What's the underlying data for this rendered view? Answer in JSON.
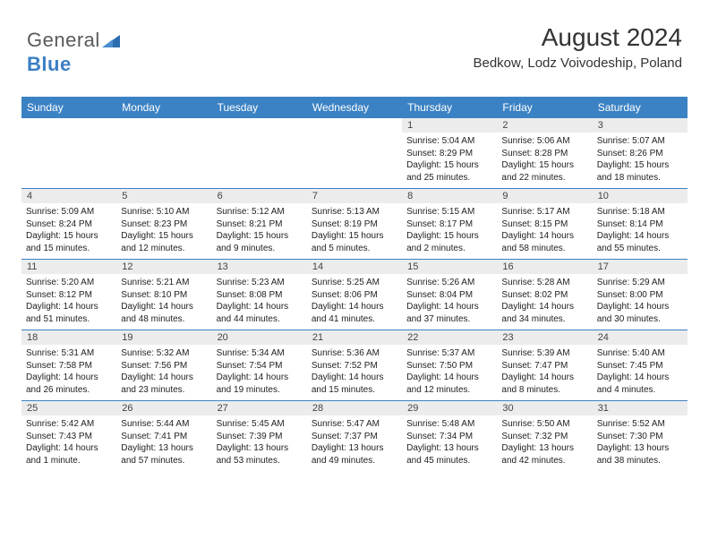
{
  "logo": {
    "text1": "General",
    "text2": "Blue"
  },
  "title": "August 2024",
  "subtitle": "Bedkow, Lodz Voivodeship, Poland",
  "daynames": [
    "Sunday",
    "Monday",
    "Tuesday",
    "Wednesday",
    "Thursday",
    "Friday",
    "Saturday"
  ],
  "colors": {
    "header_bar": "#3b82c4",
    "week_border": "#3b82c4",
    "daynum_bg": "#ececec",
    "logo_gray": "#5a5a5a",
    "logo_blue": "#3b7fc4"
  },
  "typography": {
    "title_fontsize": 28,
    "subtitle_fontsize": 15,
    "dayname_fontsize": 12,
    "daynum_fontsize": 11,
    "info_fontsize": 10
  },
  "weeks": [
    [
      {
        "n": "",
        "sr": "",
        "ss": "",
        "dl": ""
      },
      {
        "n": "",
        "sr": "",
        "ss": "",
        "dl": ""
      },
      {
        "n": "",
        "sr": "",
        "ss": "",
        "dl": ""
      },
      {
        "n": "",
        "sr": "",
        "ss": "",
        "dl": ""
      },
      {
        "n": "1",
        "sr": "Sunrise: 5:04 AM",
        "ss": "Sunset: 8:29 PM",
        "dl": "Daylight: 15 hours and 25 minutes."
      },
      {
        "n": "2",
        "sr": "Sunrise: 5:06 AM",
        "ss": "Sunset: 8:28 PM",
        "dl": "Daylight: 15 hours and 22 minutes."
      },
      {
        "n": "3",
        "sr": "Sunrise: 5:07 AM",
        "ss": "Sunset: 8:26 PM",
        "dl": "Daylight: 15 hours and 18 minutes."
      }
    ],
    [
      {
        "n": "4",
        "sr": "Sunrise: 5:09 AM",
        "ss": "Sunset: 8:24 PM",
        "dl": "Daylight: 15 hours and 15 minutes."
      },
      {
        "n": "5",
        "sr": "Sunrise: 5:10 AM",
        "ss": "Sunset: 8:23 PM",
        "dl": "Daylight: 15 hours and 12 minutes."
      },
      {
        "n": "6",
        "sr": "Sunrise: 5:12 AM",
        "ss": "Sunset: 8:21 PM",
        "dl": "Daylight: 15 hours and 9 minutes."
      },
      {
        "n": "7",
        "sr": "Sunrise: 5:13 AM",
        "ss": "Sunset: 8:19 PM",
        "dl": "Daylight: 15 hours and 5 minutes."
      },
      {
        "n": "8",
        "sr": "Sunrise: 5:15 AM",
        "ss": "Sunset: 8:17 PM",
        "dl": "Daylight: 15 hours and 2 minutes."
      },
      {
        "n": "9",
        "sr": "Sunrise: 5:17 AM",
        "ss": "Sunset: 8:15 PM",
        "dl": "Daylight: 14 hours and 58 minutes."
      },
      {
        "n": "10",
        "sr": "Sunrise: 5:18 AM",
        "ss": "Sunset: 8:14 PM",
        "dl": "Daylight: 14 hours and 55 minutes."
      }
    ],
    [
      {
        "n": "11",
        "sr": "Sunrise: 5:20 AM",
        "ss": "Sunset: 8:12 PM",
        "dl": "Daylight: 14 hours and 51 minutes."
      },
      {
        "n": "12",
        "sr": "Sunrise: 5:21 AM",
        "ss": "Sunset: 8:10 PM",
        "dl": "Daylight: 14 hours and 48 minutes."
      },
      {
        "n": "13",
        "sr": "Sunrise: 5:23 AM",
        "ss": "Sunset: 8:08 PM",
        "dl": "Daylight: 14 hours and 44 minutes."
      },
      {
        "n": "14",
        "sr": "Sunrise: 5:25 AM",
        "ss": "Sunset: 8:06 PM",
        "dl": "Daylight: 14 hours and 41 minutes."
      },
      {
        "n": "15",
        "sr": "Sunrise: 5:26 AM",
        "ss": "Sunset: 8:04 PM",
        "dl": "Daylight: 14 hours and 37 minutes."
      },
      {
        "n": "16",
        "sr": "Sunrise: 5:28 AM",
        "ss": "Sunset: 8:02 PM",
        "dl": "Daylight: 14 hours and 34 minutes."
      },
      {
        "n": "17",
        "sr": "Sunrise: 5:29 AM",
        "ss": "Sunset: 8:00 PM",
        "dl": "Daylight: 14 hours and 30 minutes."
      }
    ],
    [
      {
        "n": "18",
        "sr": "Sunrise: 5:31 AM",
        "ss": "Sunset: 7:58 PM",
        "dl": "Daylight: 14 hours and 26 minutes."
      },
      {
        "n": "19",
        "sr": "Sunrise: 5:32 AM",
        "ss": "Sunset: 7:56 PM",
        "dl": "Daylight: 14 hours and 23 minutes."
      },
      {
        "n": "20",
        "sr": "Sunrise: 5:34 AM",
        "ss": "Sunset: 7:54 PM",
        "dl": "Daylight: 14 hours and 19 minutes."
      },
      {
        "n": "21",
        "sr": "Sunrise: 5:36 AM",
        "ss": "Sunset: 7:52 PM",
        "dl": "Daylight: 14 hours and 15 minutes."
      },
      {
        "n": "22",
        "sr": "Sunrise: 5:37 AM",
        "ss": "Sunset: 7:50 PM",
        "dl": "Daylight: 14 hours and 12 minutes."
      },
      {
        "n": "23",
        "sr": "Sunrise: 5:39 AM",
        "ss": "Sunset: 7:47 PM",
        "dl": "Daylight: 14 hours and 8 minutes."
      },
      {
        "n": "24",
        "sr": "Sunrise: 5:40 AM",
        "ss": "Sunset: 7:45 PM",
        "dl": "Daylight: 14 hours and 4 minutes."
      }
    ],
    [
      {
        "n": "25",
        "sr": "Sunrise: 5:42 AM",
        "ss": "Sunset: 7:43 PM",
        "dl": "Daylight: 14 hours and 1 minute."
      },
      {
        "n": "26",
        "sr": "Sunrise: 5:44 AM",
        "ss": "Sunset: 7:41 PM",
        "dl": "Daylight: 13 hours and 57 minutes."
      },
      {
        "n": "27",
        "sr": "Sunrise: 5:45 AM",
        "ss": "Sunset: 7:39 PM",
        "dl": "Daylight: 13 hours and 53 minutes."
      },
      {
        "n": "28",
        "sr": "Sunrise: 5:47 AM",
        "ss": "Sunset: 7:37 PM",
        "dl": "Daylight: 13 hours and 49 minutes."
      },
      {
        "n": "29",
        "sr": "Sunrise: 5:48 AM",
        "ss": "Sunset: 7:34 PM",
        "dl": "Daylight: 13 hours and 45 minutes."
      },
      {
        "n": "30",
        "sr": "Sunrise: 5:50 AM",
        "ss": "Sunset: 7:32 PM",
        "dl": "Daylight: 13 hours and 42 minutes."
      },
      {
        "n": "31",
        "sr": "Sunrise: 5:52 AM",
        "ss": "Sunset: 7:30 PM",
        "dl": "Daylight: 13 hours and 38 minutes."
      }
    ]
  ]
}
